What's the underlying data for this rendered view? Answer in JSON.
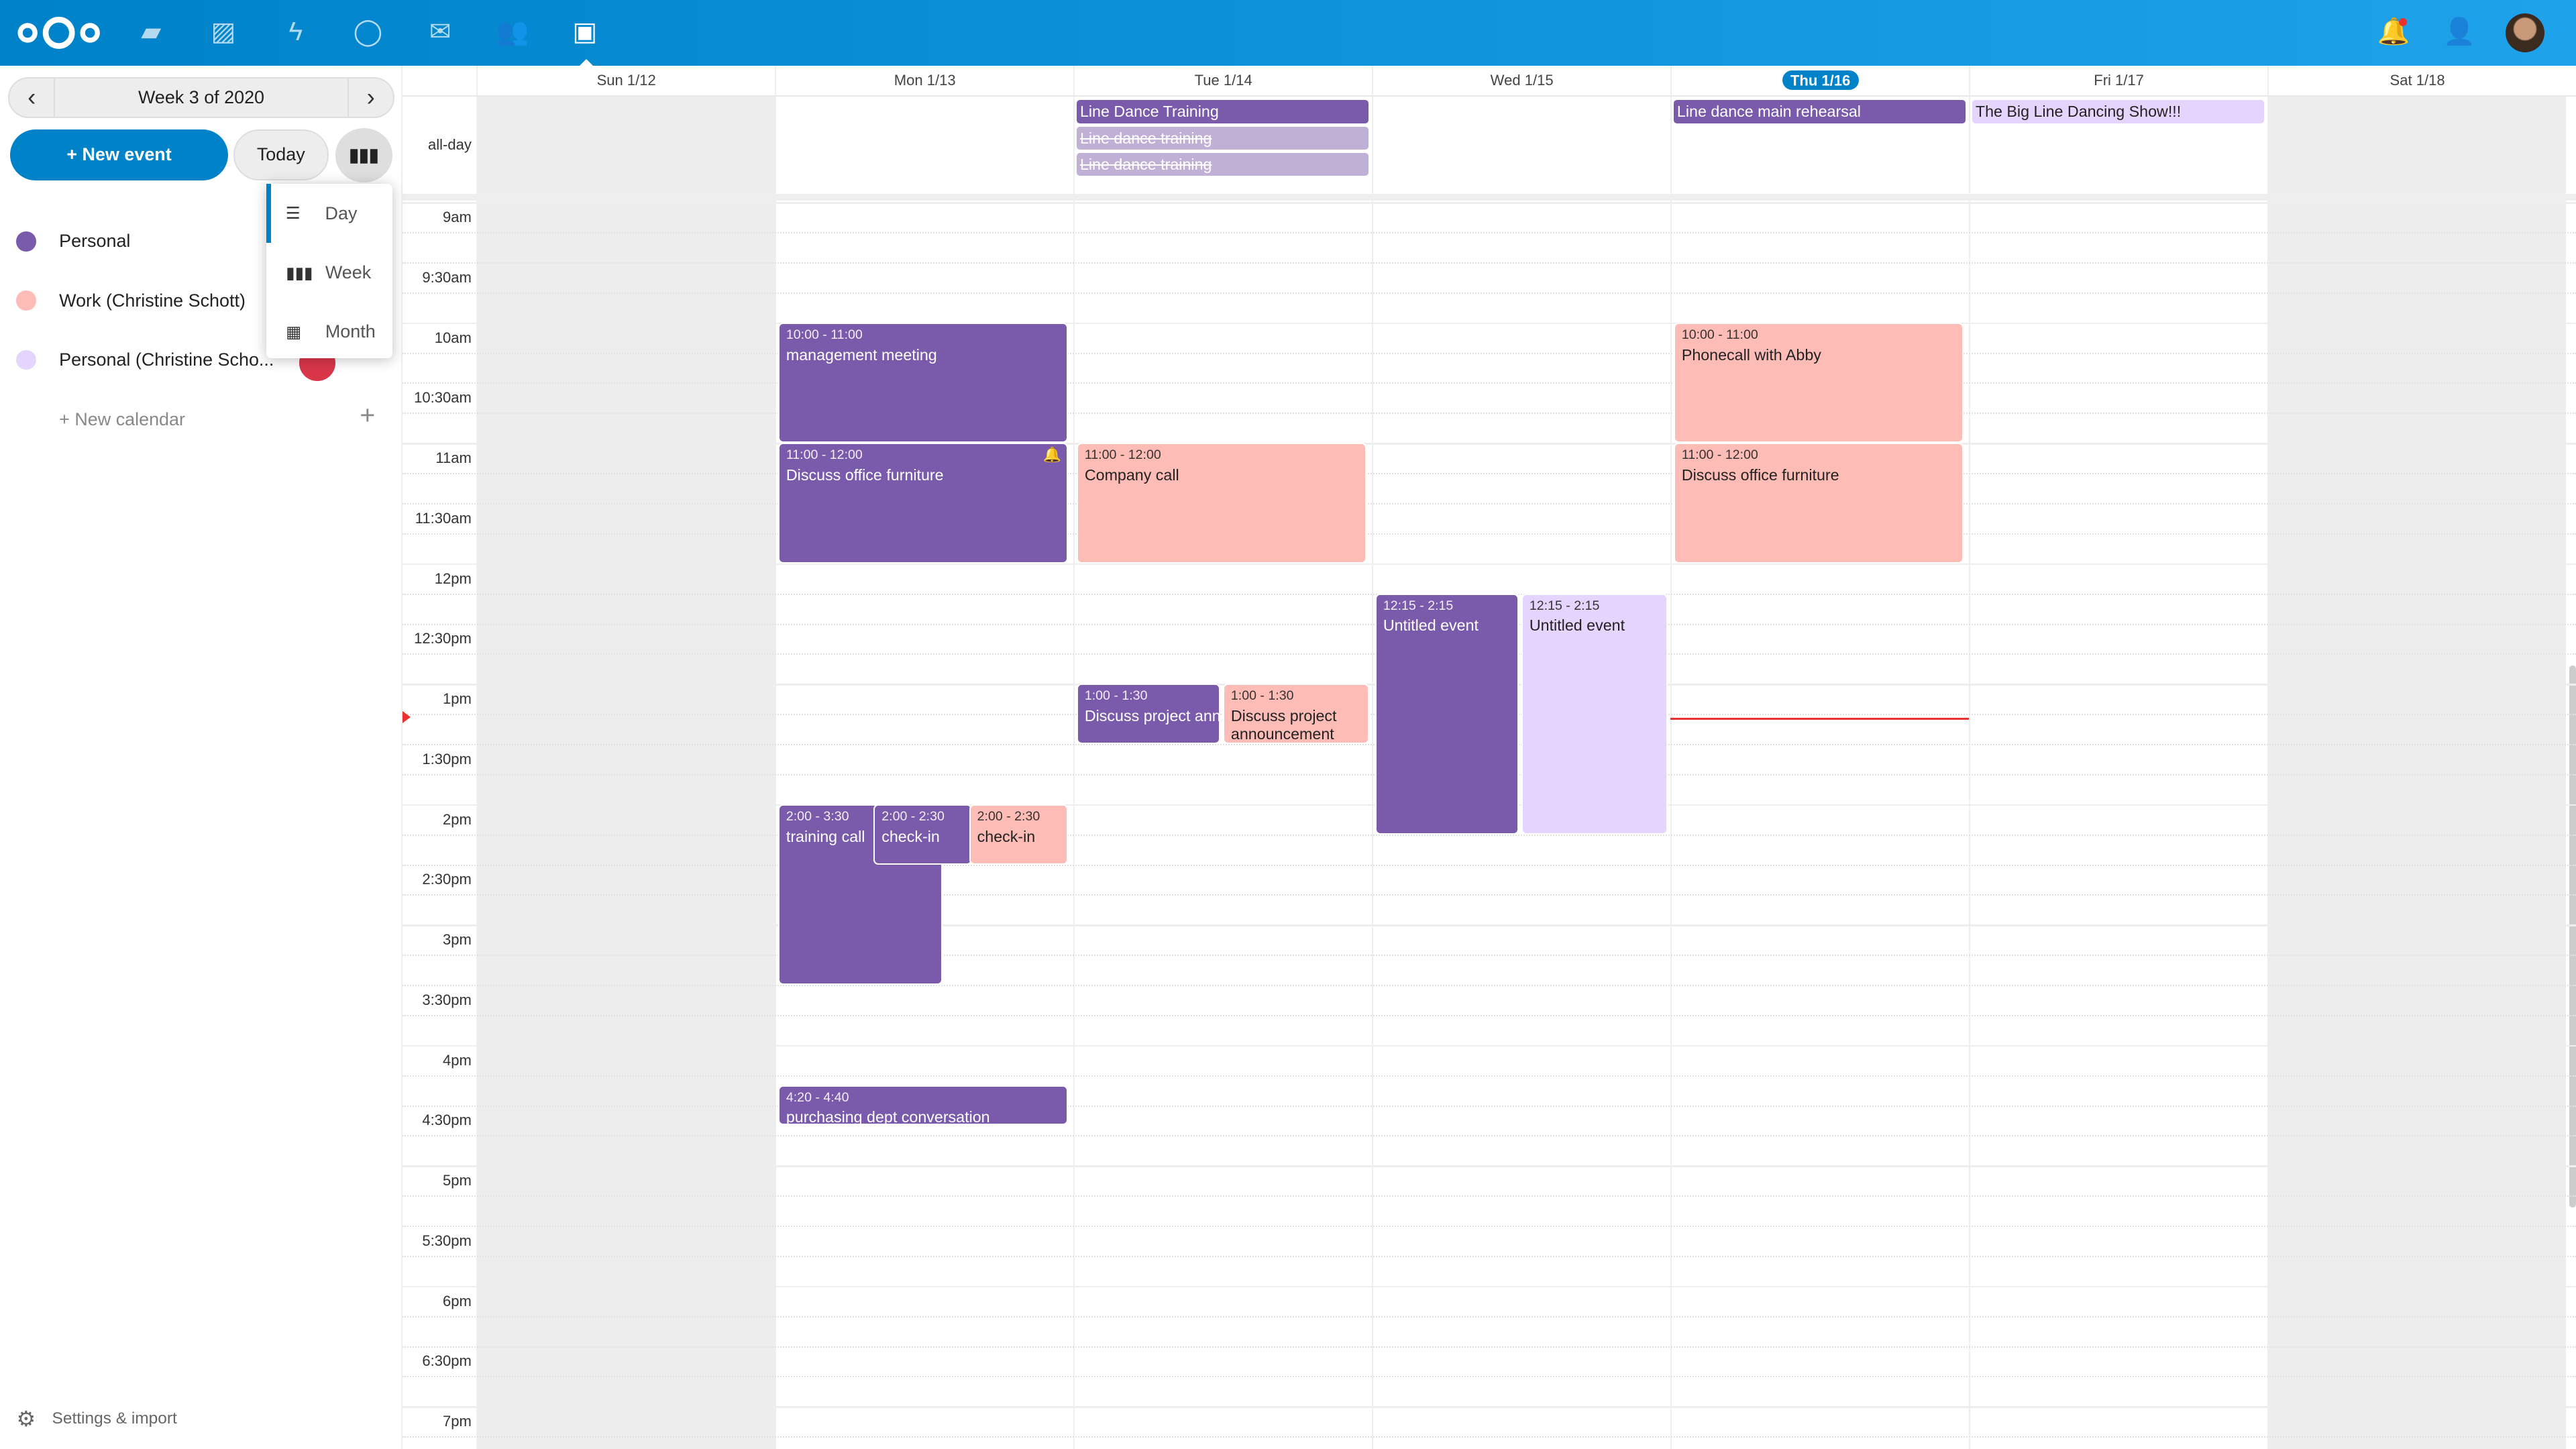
{
  "header": {
    "apps": [
      {
        "name": "files-icon",
        "glyph": "▰"
      },
      {
        "name": "photos-icon",
        "glyph": "▨"
      },
      {
        "name": "activity-icon",
        "glyph": "ϟ"
      },
      {
        "name": "talk-icon",
        "glyph": "◯"
      },
      {
        "name": "mail-icon",
        "glyph": "✉"
      },
      {
        "name": "contacts-icon",
        "glyph": "👥"
      },
      {
        "name": "calendar-icon",
        "glyph": "▣"
      }
    ],
    "active_app": "calendar"
  },
  "sidebar": {
    "week_label": "Week 3 of 2020",
    "prev": "‹",
    "next": "›",
    "new_event": "+ New event",
    "today": "Today",
    "views": [
      {
        "label": "Day",
        "selected": true
      },
      {
        "label": "Week",
        "selected": false
      },
      {
        "label": "Month",
        "selected": false
      }
    ],
    "calendars": [
      {
        "name": "Personal",
        "color": "#7a5aab"
      },
      {
        "name": "Work (Christine Schott)",
        "color": "#fdbcb6"
      },
      {
        "name": "Personal (Christine Scho...",
        "color": "#e5d5fd"
      }
    ],
    "new_calendar": "+ New calendar",
    "settings": "Settings & import"
  },
  "week": {
    "days": [
      "Sun 1/12",
      "Mon 1/13",
      "Tue 1/14",
      "Wed 1/15",
      "Thu 1/16",
      "Fri 1/17",
      "Sat 1/18"
    ],
    "today_index": 4,
    "weekend": [
      0,
      6
    ],
    "allday_label": "all-day",
    "hours": [
      "9am",
      "9:30am",
      "10am",
      "10:30am",
      "11am",
      "11:30am",
      "12pm",
      "12:30pm",
      "1pm",
      "1:30pm",
      "2pm",
      "2:30pm",
      "3pm",
      "3:30pm",
      "4pm",
      "4:30pm",
      "5pm",
      "5:30pm",
      "6pm",
      "6:30pm",
      "7pm"
    ],
    "now": "13:17",
    "allday": [
      {
        "day": 2,
        "title": "Line Dance Training",
        "color": "#7a5aab",
        "text": "#fff",
        "cancelled": false
      },
      {
        "day": 2,
        "title": "Line dance training",
        "color": "#c0b0d6",
        "text": "#fff",
        "cancelled": true
      },
      {
        "day": 2,
        "title": "Line dance training",
        "color": "#c0b0d6",
        "text": "#fff",
        "cancelled": true
      },
      {
        "day": 4,
        "title": "Line dance main rehearsal",
        "color": "#7a5aab",
        "text": "#fff",
        "cancelled": false
      },
      {
        "day": 5,
        "title": "The Big Line Dancing Show!!!",
        "color": "#e5d5fd",
        "text": "#222",
        "cancelled": false
      }
    ],
    "events": [
      {
        "day": 1,
        "start": "10:00",
        "end": "11:00",
        "time": "10:00 - 11:00",
        "title": "management meeting",
        "color": "#7a5aab",
        "text": "#fff"
      },
      {
        "day": 1,
        "start": "11:00",
        "end": "12:00",
        "time": "11:00 - 12:00",
        "title": "Discuss office furniture",
        "color": "#7a5aab",
        "text": "#fff",
        "alarm": true
      },
      {
        "day": 2,
        "start": "11:00",
        "end": "12:00",
        "time": "11:00 - 12:00",
        "title": "Company call",
        "color": "#fdbcb6",
        "text": "#222"
      },
      {
        "day": 4,
        "start": "10:00",
        "end": "11:00",
        "time": "10:00 - 11:00",
        "title": "Phonecall with Abby",
        "color": "#fdbcb6",
        "text": "#222"
      },
      {
        "day": 4,
        "start": "11:00",
        "end": "12:00",
        "time": "11:00 - 12:00",
        "title": "Discuss office furniture",
        "color": "#fdbcb6",
        "text": "#222"
      },
      {
        "day": 3,
        "start": "12:15",
        "end": "14:15",
        "time": "12:15 - 2:15",
        "title": "Untitled event",
        "color": "#7a5aab",
        "text": "#fff"
      },
      {
        "day": 3,
        "start": "12:15",
        "end": "14:15",
        "time": "12:15 - 2:15",
        "title": "Untitled event",
        "color": "#e5d5fd",
        "text": "#222"
      },
      {
        "day": 2,
        "start": "13:00",
        "end": "13:30",
        "time": "1:00 - 1:30",
        "title": "Discuss project announcement",
        "color": "#7a5aab",
        "text": "#fff"
      },
      {
        "day": 2,
        "start": "13:00",
        "end": "13:30",
        "time": "1:00 - 1:30",
        "title": "Discuss project announcement",
        "color": "#fdbcb6",
        "text": "#222"
      },
      {
        "day": 1,
        "start": "14:00",
        "end": "15:30",
        "time": "2:00 - 3:30",
        "title": "training call",
        "color": "#7a5aab",
        "text": "#fff"
      },
      {
        "day": 1,
        "start": "14:00",
        "end": "14:30",
        "time": "2:00 - 2:30",
        "title": "check-in",
        "color": "#7a5aab",
        "text": "#fff"
      },
      {
        "day": 1,
        "start": "14:00",
        "end": "14:30",
        "time": "2:00 - 2:30",
        "title": "check-in",
        "color": "#fdbcb6",
        "text": "#222"
      },
      {
        "day": 1,
        "start": "16:20",
        "end": "16:40",
        "time": "4:20 - 4:40",
        "title": "purchasing dept conversation",
        "color": "#7a5aab",
        "text": "#fff"
      }
    ]
  }
}
